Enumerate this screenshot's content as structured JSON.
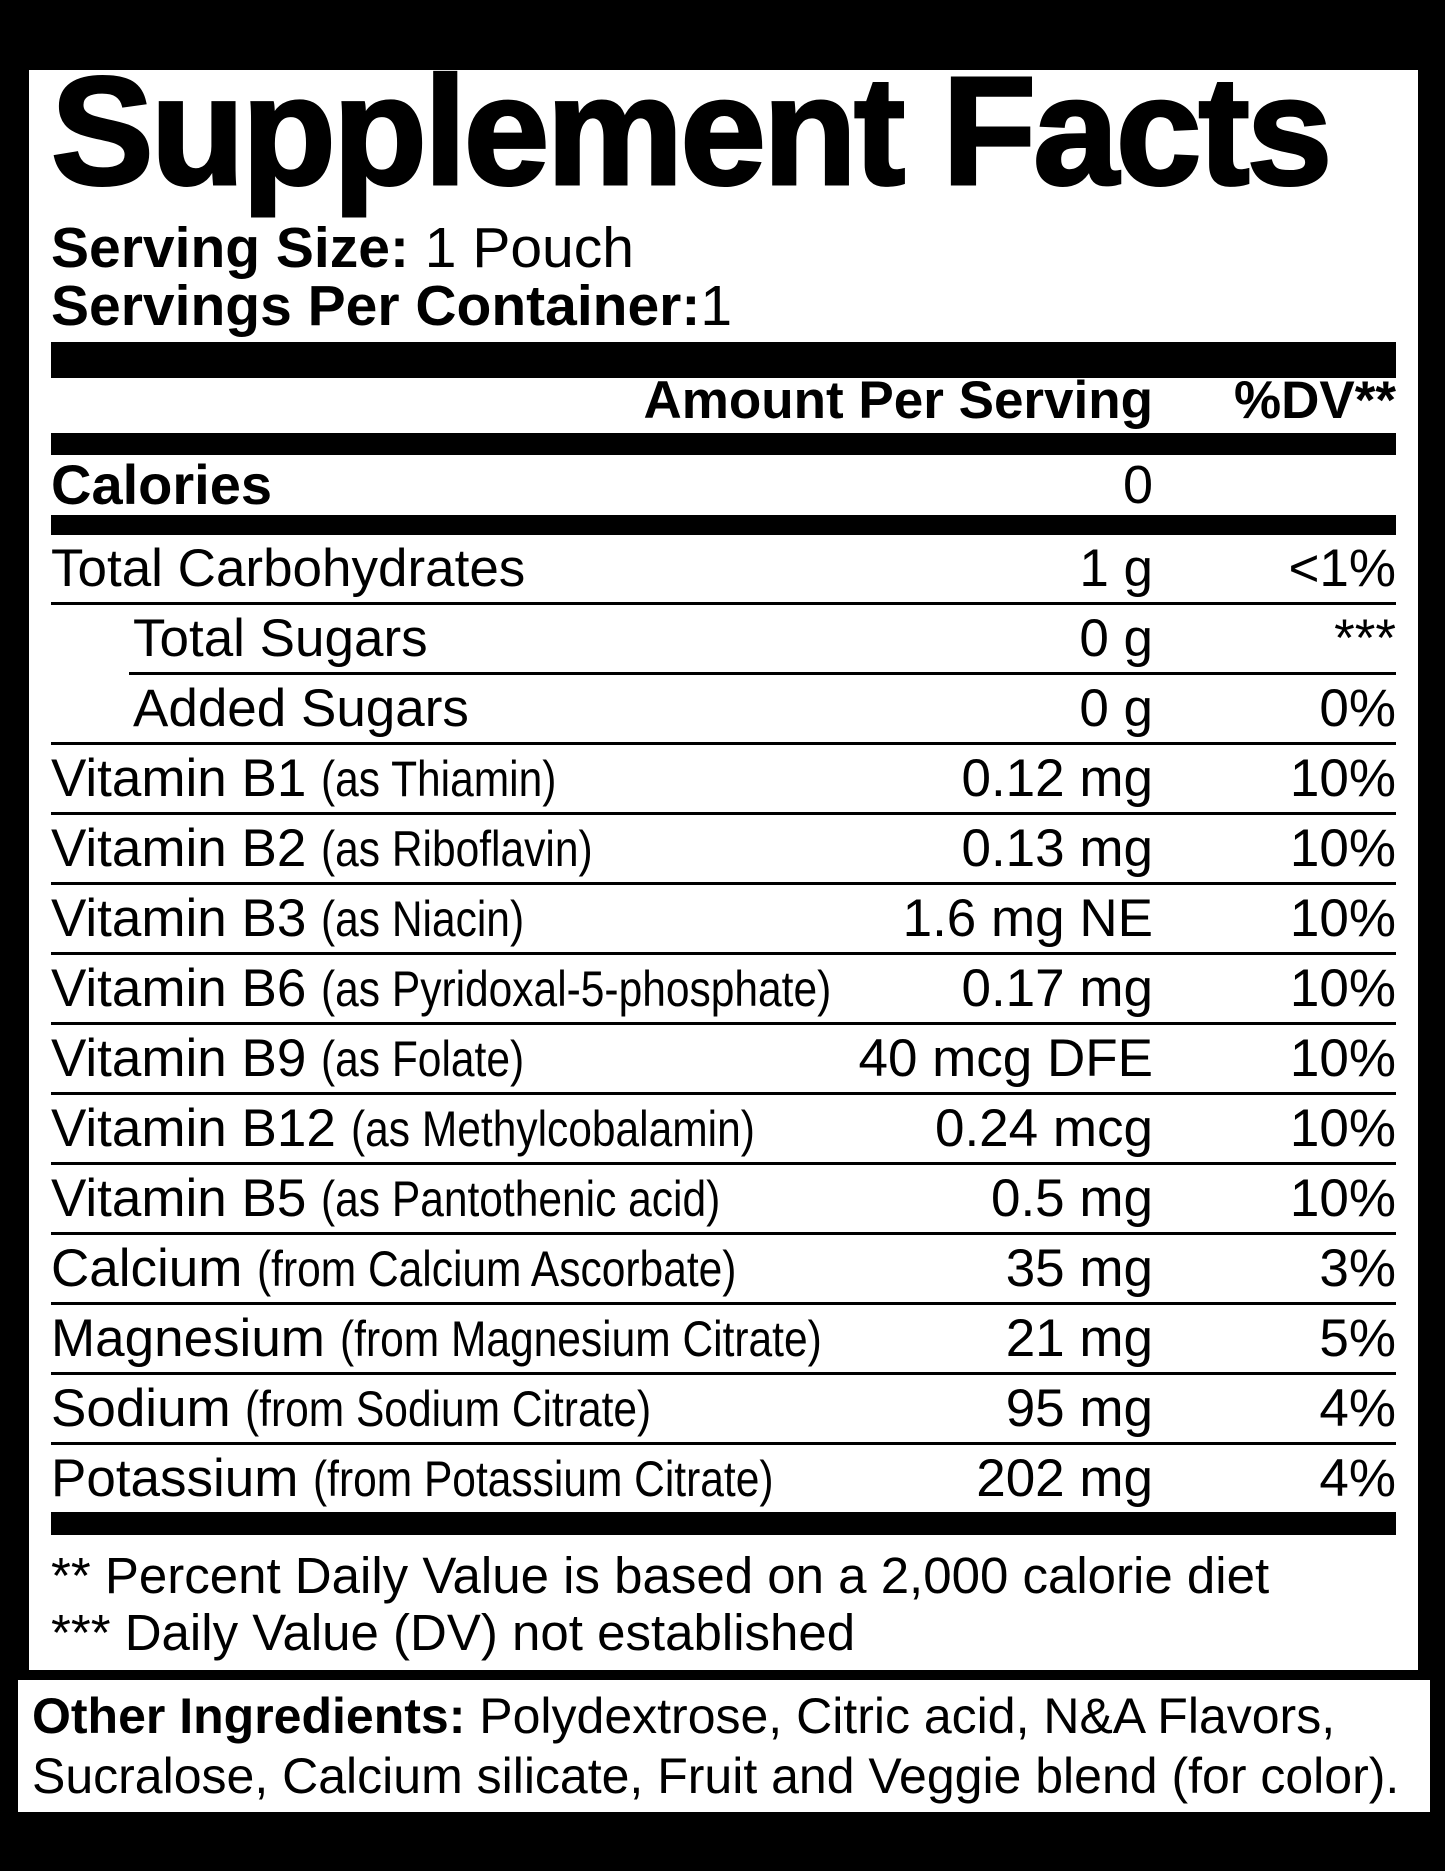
{
  "title": "Supplement Facts",
  "serving": {
    "size_label": "Serving Size:",
    "size_value": "1 Pouch",
    "per_container_label": "Servings Per Container:",
    "per_container_value": "1"
  },
  "table_header": {
    "amount": "Amount Per Serving",
    "dv": "%DV**"
  },
  "calories": {
    "name": "Calories",
    "amount": "0"
  },
  "rows": [
    {
      "name": "Total Carbohydrates",
      "amount": "1 g",
      "dv": "<1%"
    },
    {
      "name": "Total Sugars",
      "amount": "0 g",
      "dv": "***"
    },
    {
      "name": "Added Sugars",
      "amount": "0 g",
      "dv": "0%"
    },
    {
      "name": "Vitamin B1",
      "paren": "(as Thiamin)",
      "amount": "0.12 mg",
      "dv": "10%"
    },
    {
      "name": "Vitamin B2",
      "paren": "(as Riboflavin)",
      "amount": "0.13 mg",
      "dv": "10%"
    },
    {
      "name": "Vitamin B3",
      "paren": "(as Niacin)",
      "amount": "1.6 mg NE",
      "dv": "10%"
    },
    {
      "name": "Vitamin B6",
      "paren": "(as Pyridoxal-5-phosphate)",
      "amount": "0.17 mg",
      "dv": "10%"
    },
    {
      "name": "Vitamin B9",
      "paren": "(as Folate)",
      "amount": "40 mcg DFE",
      "dv": "10%"
    },
    {
      "name": "Vitamin B12",
      "paren": "(as Methylcobalamin)",
      "amount": "0.24 mcg",
      "dv": "10%"
    },
    {
      "name": "Vitamin B5",
      "paren": "(as Pantothenic acid)",
      "amount": "0.5 mg",
      "dv": "10%"
    },
    {
      "name": "Calcium",
      "paren": "(from Calcium Ascorbate)",
      "amount": "35 mg",
      "dv": "3%"
    },
    {
      "name": "Magnesium",
      "paren": "(from Magnesium Citrate)",
      "amount": "21 mg",
      "dv": "5%"
    },
    {
      "name": "Sodium",
      "paren": "(from Sodium Citrate)",
      "amount": "95 mg",
      "dv": "4%"
    },
    {
      "name": "Potassium",
      "paren": "(from Potassium Citrate)",
      "amount": "202 mg",
      "dv": "4%"
    }
  ],
  "footnotes": [
    "** Percent Daily Value is based on a 2,000 calorie diet",
    "*** Daily Value (DV) not established"
  ],
  "other_ingredients": {
    "label": "Other Ingredients:",
    "line1_rest": " Polydextrose, Citric acid, N&A Flavors,",
    "line2": "Sucralose, Calcium silicate, Fruit and Veggie blend (for color)."
  },
  "colors": {
    "background": "#000000",
    "panel": "#ffffff",
    "text": "#000000"
  }
}
